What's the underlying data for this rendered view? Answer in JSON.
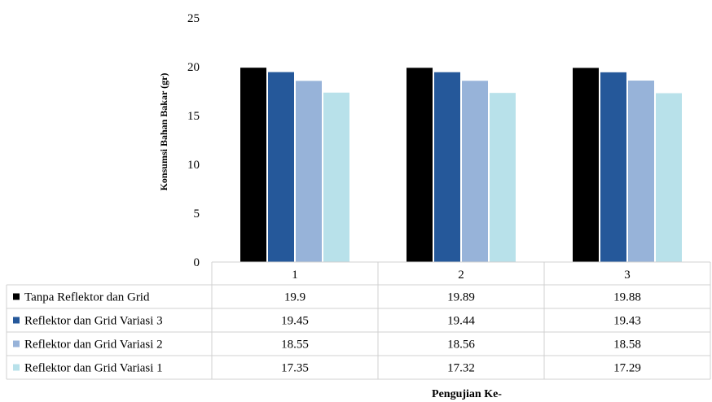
{
  "chart_data": {
    "type": "bar",
    "title": "",
    "xlabel": "Pengujian Ke-",
    "ylabel": "Konsumsi Bahan Bakar (gr)",
    "ylim": [
      0,
      25
    ],
    "yticks": [
      0,
      5,
      10,
      15,
      20,
      25
    ],
    "categories": [
      "1",
      "2",
      "3"
    ],
    "grid": false,
    "legend": "data-table-left",
    "series": [
      {
        "name": "Tanpa Reflektor dan Grid",
        "color": "#000000",
        "values": [
          19.9,
          19.89,
          19.88
        ],
        "labels": [
          "19.9",
          "19.89",
          "19.88"
        ]
      },
      {
        "name": "Reflektor dan Grid Variasi 3",
        "color": "#25589a",
        "values": [
          19.45,
          19.44,
          19.43
        ],
        "labels": [
          "19.45",
          "19.44",
          "19.43"
        ]
      },
      {
        "name": "Reflektor dan Grid Variasi 2",
        "color": "#97b3d9",
        "values": [
          18.55,
          18.56,
          18.58
        ],
        "labels": [
          "18.55",
          "18.56",
          "18.58"
        ]
      },
      {
        "name": "Reflektor dan Grid Variasi 1",
        "color": "#b8e1ea",
        "values": [
          17.35,
          17.32,
          17.29
        ],
        "labels": [
          "17.35",
          "17.32",
          "17.29"
        ]
      }
    ]
  }
}
